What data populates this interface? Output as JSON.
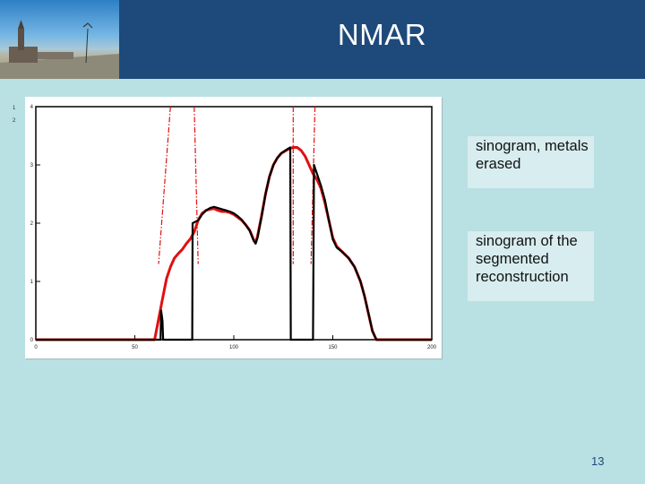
{
  "slide": {
    "title": "NMAR",
    "page_number": "13",
    "side_marks": [
      "1",
      "2"
    ],
    "background_color": "#b9e0e3",
    "header_color": "#1d4a7a"
  },
  "legend": {
    "black_label": "sinogram, metals erased",
    "red_label": "sinogram of the segmented reconstruction"
  },
  "chart_data": {
    "type": "line",
    "xlim": [
      0,
      200
    ],
    "ylim": [
      0,
      4
    ],
    "xticks": [
      "0",
      "50",
      "100",
      "150",
      "200"
    ],
    "yticks": [
      "0",
      "1",
      "2",
      "3",
      "4"
    ],
    "colors": {
      "black": "#000000",
      "red": "#e01010"
    },
    "series": [
      {
        "color": "black",
        "points": [
          [
            0,
            0
          ],
          [
            10,
            0
          ],
          [
            20,
            0
          ],
          [
            30,
            0
          ],
          [
            40,
            0
          ],
          [
            50,
            0
          ],
          [
            60,
            0
          ],
          [
            63,
            0
          ],
          [
            63.3,
            0.5
          ],
          [
            64,
            0.32
          ],
          [
            64.3,
            0
          ],
          [
            70,
            0
          ],
          [
            79,
            0
          ],
          [
            79.2,
            2.0
          ],
          [
            82,
            2.05
          ],
          [
            84,
            2.15
          ],
          [
            86,
            2.22
          ],
          [
            88,
            2.26
          ],
          [
            90,
            2.28
          ],
          [
            92,
            2.26
          ],
          [
            94,
            2.24
          ],
          [
            96,
            2.22
          ],
          [
            98,
            2.2
          ],
          [
            100,
            2.17
          ],
          [
            102,
            2.12
          ],
          [
            104,
            2.06
          ],
          [
            106,
            1.97
          ],
          [
            108,
            1.87
          ],
          [
            110,
            1.7
          ],
          [
            111,
            1.65
          ],
          [
            112,
            1.75
          ],
          [
            114,
            2.1
          ],
          [
            116,
            2.5
          ],
          [
            118,
            2.8
          ],
          [
            120,
            3.0
          ],
          [
            122,
            3.12
          ],
          [
            124,
            3.2
          ],
          [
            126,
            3.25
          ],
          [
            127,
            3.27
          ],
          [
            128.5,
            3.3
          ],
          [
            128.8,
            0
          ],
          [
            134,
            0
          ],
          [
            140,
            0
          ],
          [
            140.5,
            3.0
          ],
          [
            142,
            2.85
          ],
          [
            144,
            2.65
          ],
          [
            146,
            2.4
          ],
          [
            148,
            2.05
          ],
          [
            150,
            1.72
          ],
          [
            152,
            1.58
          ],
          [
            155,
            1.5
          ],
          [
            158,
            1.4
          ],
          [
            161,
            1.25
          ],
          [
            164,
            1.0
          ],
          [
            166,
            0.75
          ],
          [
            168,
            0.45
          ],
          [
            170,
            0.15
          ],
          [
            172,
            0
          ],
          [
            180,
            0
          ],
          [
            190,
            0
          ],
          [
            200,
            0
          ]
        ]
      },
      {
        "color": "red",
        "points": [
          [
            0,
            0
          ],
          [
            10,
            0
          ],
          [
            20,
            0
          ],
          [
            30,
            0
          ],
          [
            40,
            0
          ],
          [
            50,
            0
          ],
          [
            60,
            0
          ],
          [
            62,
            0.35
          ],
          [
            64,
            0.7
          ],
          [
            66,
            1.05
          ],
          [
            68,
            1.25
          ],
          [
            70,
            1.4
          ],
          [
            72,
            1.48
          ],
          [
            74,
            1.55
          ],
          [
            76,
            1.65
          ],
          [
            78,
            1.73
          ],
          [
            80,
            1.85
          ],
          [
            82,
            2.05
          ],
          [
            84,
            2.17
          ],
          [
            86,
            2.22
          ],
          [
            88,
            2.24
          ],
          [
            90,
            2.25
          ],
          [
            92,
            2.22
          ],
          [
            94,
            2.2
          ],
          [
            96,
            2.2
          ],
          [
            98,
            2.18
          ],
          [
            100,
            2.15
          ],
          [
            102,
            2.1
          ],
          [
            104,
            2.05
          ],
          [
            106,
            1.97
          ],
          [
            108,
            1.88
          ],
          [
            110,
            1.72
          ],
          [
            111,
            1.66
          ],
          [
            112,
            1.78
          ],
          [
            114,
            2.12
          ],
          [
            116,
            2.5
          ],
          [
            118,
            2.8
          ],
          [
            120,
            3.0
          ],
          [
            122,
            3.12
          ],
          [
            124,
            3.2
          ],
          [
            126,
            3.24
          ],
          [
            128,
            3.28
          ],
          [
            130,
            3.3
          ],
          [
            132,
            3.3
          ],
          [
            134,
            3.25
          ],
          [
            136,
            3.15
          ],
          [
            138,
            3.0
          ],
          [
            140,
            2.85
          ],
          [
            142,
            2.75
          ],
          [
            144,
            2.6
          ],
          [
            146,
            2.35
          ],
          [
            148,
            2.05
          ],
          [
            150,
            1.75
          ],
          [
            152,
            1.6
          ],
          [
            155,
            1.5
          ],
          [
            158,
            1.4
          ],
          [
            161,
            1.25
          ],
          [
            164,
            1.0
          ],
          [
            166,
            0.75
          ],
          [
            168,
            0.45
          ],
          [
            170,
            0.15
          ],
          [
            172,
            0
          ],
          [
            180,
            0
          ],
          [
            190,
            0
          ],
          [
            200,
            0
          ]
        ]
      }
    ],
    "dashed_marker_lines": [
      {
        "x_top": 68,
        "x_bottom": 62
      },
      {
        "x_top": 80,
        "x_bottom": 82
      },
      {
        "x_top": 130,
        "x_bottom": 130
      },
      {
        "x_top": 141,
        "x_bottom": 139
      }
    ]
  }
}
